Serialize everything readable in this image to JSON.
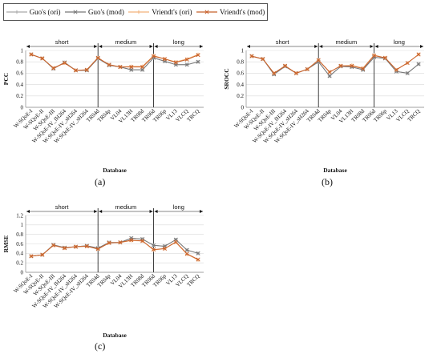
{
  "legend": [
    {
      "label": "Guo's (ori)",
      "color": "#a9a9a9",
      "marker": "+"
    },
    {
      "label": "Guo's (mod)",
      "color": "#777777",
      "marker": "x"
    },
    {
      "label": "Vriendt's (ori)",
      "color": "#f2b27a",
      "marker": "+"
    },
    {
      "label": "Vriendt's (mod)",
      "color": "#c8602a",
      "marker": "x"
    }
  ],
  "panel_labels": [
    "(a)",
    "(b)",
    "(c)"
  ],
  "chart_data": [
    {
      "type": "line",
      "ylabel": "PCC",
      "xlabel": "Database",
      "ylim": [
        0,
        1.0
      ],
      "yticks": [
        "0",
        "0.2",
        "0.4",
        "0.6",
        "0.8",
        "1"
      ],
      "groups": [
        {
          "label": "short",
          "from": 0,
          "to": 6
        },
        {
          "label": "medium",
          "from": 6,
          "to": 11
        },
        {
          "label": "long",
          "from": 11,
          "to": 15
        }
      ],
      "categories": [
        "W-SQoE-I",
        "W-SQoE-II",
        "W-SQoE-III",
        "W-SQoE-IV_fH264",
        "W-SQoE-IV_sH264",
        "W-SQoE-IV_sH264",
        "TR04d",
        "TR04p",
        "VL04",
        "VL13H",
        "TR08d",
        "TR06d",
        "TR06p",
        "VL13",
        "VLCQ",
        "TRCQ"
      ],
      "series": [
        {
          "name": "Guo's (ori)",
          "values": [
            0.93,
            0.86,
            0.68,
            0.79,
            0.65,
            0.65,
            0.86,
            0.74,
            0.71,
            0.66,
            0.66,
            0.87,
            0.81,
            0.75,
            0.75,
            0.8
          ]
        },
        {
          "name": "Guo's (mod)",
          "values": [
            0.93,
            0.86,
            0.68,
            0.79,
            0.65,
            0.65,
            0.86,
            0.74,
            0.71,
            0.66,
            0.66,
            0.87,
            0.81,
            0.75,
            0.75,
            0.8
          ]
        },
        {
          "name": "Vriendt's (ori)",
          "values": [
            0.93,
            0.86,
            0.69,
            0.78,
            0.65,
            0.66,
            0.87,
            0.75,
            0.71,
            0.72,
            0.72,
            0.91,
            0.85,
            0.8,
            0.85,
            0.93
          ]
        },
        {
          "name": "Vriendt's (mod)",
          "values": [
            0.93,
            0.86,
            0.69,
            0.78,
            0.65,
            0.66,
            0.87,
            0.75,
            0.71,
            0.71,
            0.71,
            0.9,
            0.85,
            0.79,
            0.84,
            0.92
          ]
        }
      ]
    },
    {
      "type": "line",
      "ylabel": "SROCC",
      "xlabel": "Database",
      "ylim": [
        0,
        1.0
      ],
      "yticks": [
        "0",
        "0.2",
        "0.4",
        "0.6",
        "0.8",
        "1"
      ],
      "groups": [
        {
          "label": "short",
          "from": 0,
          "to": 6
        },
        {
          "label": "medium",
          "from": 6,
          "to": 11
        },
        {
          "label": "long",
          "from": 11,
          "to": 15
        }
      ],
      "categories": [
        "W-SQoE-I",
        "W-SQoE-II",
        "W-SQoE-III",
        "W-SQoE-IV_fH264",
        "W-SQoE-IV_sH264",
        "W-SQoE-IV_sH264",
        "TR04d",
        "TR04p",
        "VL04",
        "VL13H",
        "TR08d",
        "TR06d",
        "TR06p",
        "VL13",
        "VLCQ",
        "TRCQ"
      ],
      "series": [
        {
          "name": "Guo's (ori)",
          "values": [
            0.9,
            0.85,
            0.58,
            0.72,
            0.6,
            0.67,
            0.8,
            0.55,
            0.72,
            0.71,
            0.66,
            0.88,
            0.86,
            0.63,
            0.6,
            0.76
          ]
        },
        {
          "name": "Guo's (mod)",
          "values": [
            0.9,
            0.85,
            0.58,
            0.72,
            0.6,
            0.67,
            0.8,
            0.55,
            0.72,
            0.71,
            0.66,
            0.88,
            0.86,
            0.63,
            0.6,
            0.76
          ]
        },
        {
          "name": "Vriendt's (ori)",
          "values": [
            0.9,
            0.85,
            0.6,
            0.73,
            0.6,
            0.67,
            0.83,
            0.62,
            0.73,
            0.74,
            0.69,
            0.92,
            0.87,
            0.66,
            0.78,
            0.93
          ]
        },
        {
          "name": "Vriendt's (mod)",
          "values": [
            0.9,
            0.85,
            0.6,
            0.73,
            0.6,
            0.67,
            0.83,
            0.62,
            0.73,
            0.73,
            0.68,
            0.91,
            0.87,
            0.66,
            0.78,
            0.93
          ]
        }
      ]
    },
    {
      "type": "line",
      "ylabel": "RMSE",
      "xlabel": "Database",
      "ylim": [
        0,
        1.2
      ],
      "yticks": [
        "0",
        "0.2",
        "0.4",
        "0.6",
        "0.8",
        "1",
        "1.2"
      ],
      "groups": [
        {
          "label": "short",
          "from": 0,
          "to": 6
        },
        {
          "label": "medium",
          "from": 6,
          "to": 11
        },
        {
          "label": "long",
          "from": 11,
          "to": 15
        }
      ],
      "categories": [
        "W-SQoE-I",
        "W-SQoE-II",
        "W-SQoE-III",
        "W-SQoE-IV_fH264",
        "W-SQoE-IV_sH264",
        "W-SQoE-IV_sH264",
        "TR04d",
        "TR04p",
        "VL04",
        "VL13H",
        "TR08d",
        "TR06d",
        "TR06p",
        "VL13",
        "VLCQ",
        "TRCQ"
      ],
      "series": [
        {
          "name": "Guo's (ori)",
          "values": [
            0.34,
            0.37,
            0.58,
            0.52,
            0.54,
            0.56,
            0.51,
            0.63,
            0.63,
            0.72,
            0.7,
            0.57,
            0.55,
            0.69,
            0.47,
            0.4
          ]
        },
        {
          "name": "Guo's (mod)",
          "values": [
            0.34,
            0.37,
            0.58,
            0.52,
            0.54,
            0.56,
            0.51,
            0.63,
            0.63,
            0.72,
            0.7,
            0.57,
            0.55,
            0.69,
            0.47,
            0.4
          ]
        },
        {
          "name": "Vriendt's (ori)",
          "values": [
            0.34,
            0.37,
            0.57,
            0.51,
            0.54,
            0.55,
            0.49,
            0.62,
            0.63,
            0.67,
            0.66,
            0.47,
            0.5,
            0.63,
            0.38,
            0.26
          ]
        },
        {
          "name": "Vriendt's (mod)",
          "values": [
            0.34,
            0.37,
            0.57,
            0.51,
            0.54,
            0.55,
            0.49,
            0.62,
            0.63,
            0.68,
            0.66,
            0.48,
            0.5,
            0.64,
            0.39,
            0.27
          ]
        }
      ]
    }
  ]
}
